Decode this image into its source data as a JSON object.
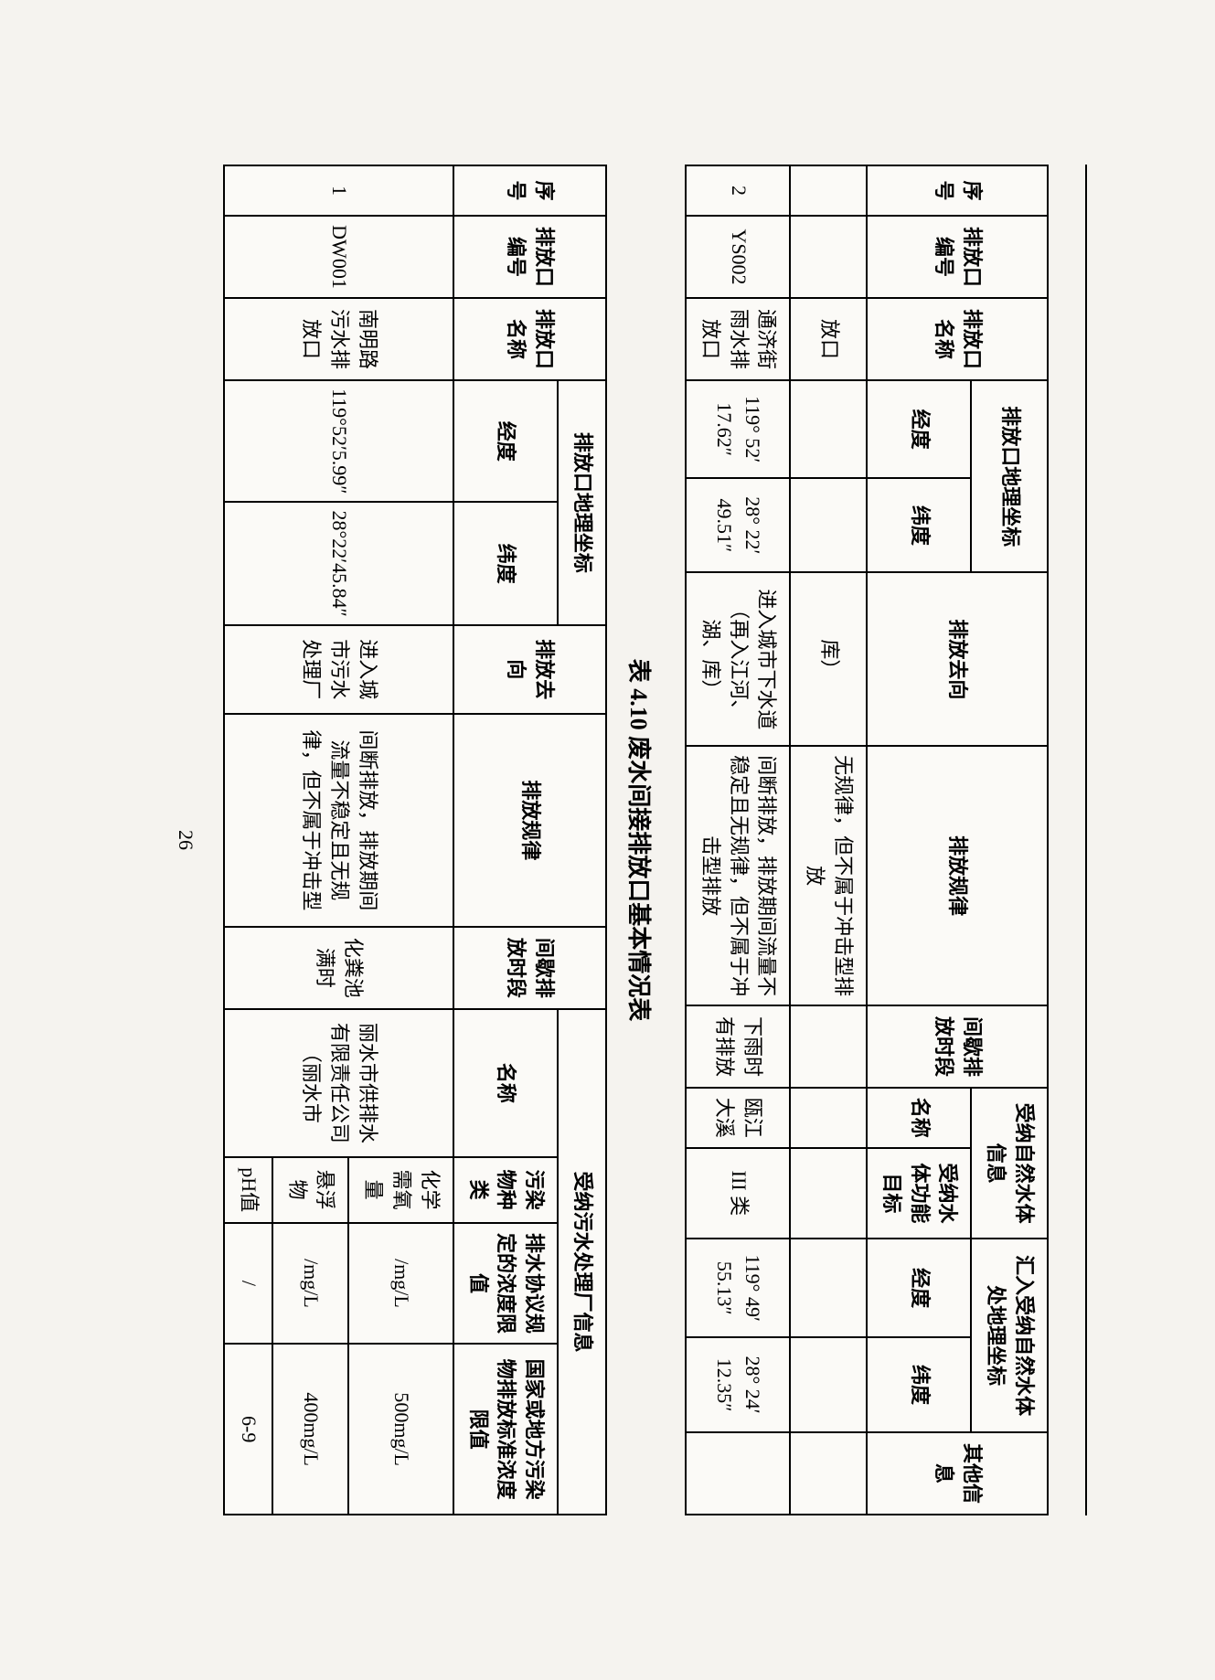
{
  "caption": "表 4.10 废水间接排放口基本情况表",
  "pageNumber": "26",
  "table1": {
    "headers": {
      "c1": "序号",
      "c2": "排放口编号",
      "c3": "排放口名称",
      "c4": "排放口地理坐标",
      "c4a": "经度",
      "c4b": "纬度",
      "c5": "排放去向",
      "c6": "排放规律",
      "c7": "间歇排放时段",
      "c8": "受纳自然水体信息",
      "c8a": "名称",
      "c8b": "受纳水体功能目标",
      "c9": "汇入受纳自然水体处地理坐标",
      "c9a": "经度",
      "c9b": "纬度",
      "c10": "其他信息"
    },
    "rows": [
      {
        "c1": "",
        "c2": "",
        "c3": "放口",
        "c4a": "",
        "c4b": "",
        "c5": "库）",
        "c6": "无规律，但不属于冲击型排放",
        "c7": "",
        "c8a": "",
        "c8b": "",
        "c9a": "",
        "c9b": "",
        "c10": ""
      },
      {
        "c1": "2",
        "c2": "YS002",
        "c3": "通济街雨水排放口",
        "c4a": "119° 52′ 17.62″",
        "c4b": "28° 22′ 49.51″",
        "c5": "进入城市下水道（再入江河、湖、库）",
        "c6": "间断排放，排放期间流量不稳定且无规律，但不属于冲击型排放",
        "c7": "下雨时有排放",
        "c8a": "瓯江大溪",
        "c8b": "III 类",
        "c9a": "119° 49′ 55.13″",
        "c9b": "28° 24′ 12.35″",
        "c10": ""
      }
    ]
  },
  "table2": {
    "headers": {
      "c1": "序号",
      "c2": "排放口编号",
      "c3": "排放口名称",
      "c4": "排放口地理坐标",
      "c4a": "经度",
      "c4b": "纬度",
      "c5": "排放去向",
      "c6": "排放规律",
      "c7": "间歇排放时段",
      "c8": "受纳污水处理厂信息",
      "c8a": "名称",
      "c8b": "污染物种类",
      "c8c": "排水协议规定的浓度限值",
      "c8d": "国家或地方污染物排放标准浓度限值"
    },
    "row": {
      "c1": "1",
      "c2": "DW001",
      "c3": "南明路污水排放口",
      "c4a": "119°52′5.99″",
      "c4b": "28°22′45.84″",
      "c5": "进入城市污水处理厂",
      "c6": "间断排放，排放期间流量不稳定且无规律，但不属于冲击型",
      "c7": "化粪池满时",
      "c8a": "丽水市供排水有限责任公司（丽水市",
      "p1": {
        "name": "化学需氧量",
        "unit": "/mg/L",
        "limit": "500mg/L"
      },
      "p2": {
        "name": "悬浮物",
        "unit": "/mg/L",
        "limit": "400mg/L"
      },
      "p3": {
        "name": "pH值",
        "unit": "/",
        "limit": "6-9"
      }
    }
  }
}
